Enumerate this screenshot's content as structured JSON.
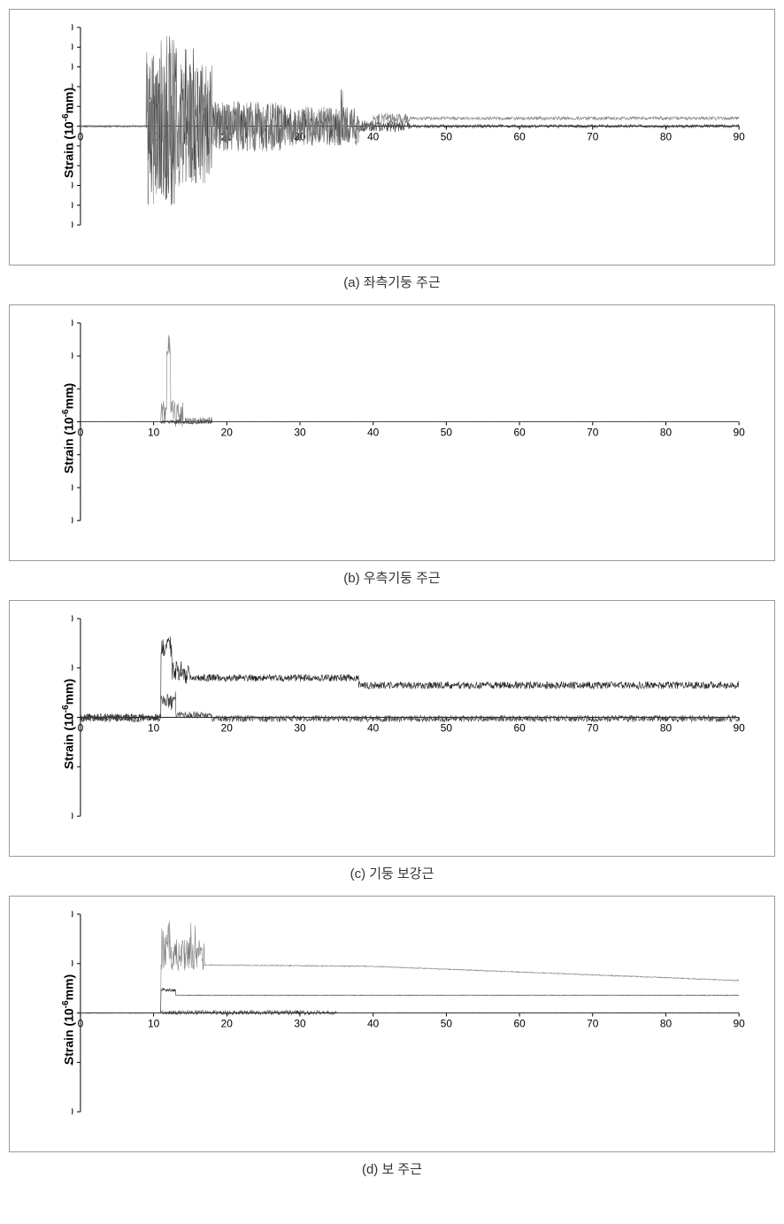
{
  "page": {
    "background_color": "#ffffff",
    "border_color": "#999999",
    "font_family": "Arial, sans-serif"
  },
  "charts": [
    {
      "id": "chart-a",
      "caption": "(a) 좌측기둥 주근",
      "ylabel": "Strain (10⁻⁶mm)",
      "type": "line",
      "xlim": [
        0,
        90
      ],
      "ylim": [
        -3500,
        3500
      ],
      "xtick_step": 10,
      "ytick_step": 700,
      "xticks": [
        0,
        10,
        20,
        30,
        40,
        50,
        60,
        70,
        80,
        90
      ],
      "yticks": [
        -3500,
        -2800,
        -2100,
        -1400,
        -700,
        0,
        700,
        1400,
        2100,
        2800,
        3500
      ],
      "zero_line_y": 0,
      "line_width": 0.6,
      "colors": {
        "series1": "#404040",
        "series2": "#808080"
      },
      "series": [
        {
          "name": "series1",
          "color": "#404040",
          "data_summary": "oscillating strain, quiet 0-9, high activity peaks ~3100 at 11-13, spikes to 2900 at 14-16, diminishing oscillations 18-40, near zero after 45"
        },
        {
          "name": "series2",
          "color": "#808080",
          "data_summary": "similar envelope, slightly offset, settles near 300 after 40"
        }
      ]
    },
    {
      "id": "chart-b",
      "caption": "(b) 우측기둥 주근",
      "ylabel": "Strain (10⁻⁶mm)",
      "type": "line",
      "xlim": [
        0,
        90
      ],
      "ylim": [
        -90000,
        90000
      ],
      "xtick_step": 10,
      "ytick_step": 30000,
      "xticks": [
        0,
        10,
        20,
        30,
        40,
        50,
        60,
        70,
        80,
        90
      ],
      "yticks": [
        -90000,
        -60000,
        -30000,
        0,
        30000,
        60000,
        90000
      ],
      "zero_line_y": 0,
      "line_width": 0.6,
      "colors": {
        "series1": "#404040",
        "series2": "#808080"
      },
      "series": [
        {
          "name": "series1",
          "color": "#808080",
          "data_summary": "flat near zero, single large spike ~80000 at x≈12, minor spikes ~20000 nearby, flat after 18"
        },
        {
          "name": "series2",
          "color": "#404040",
          "data_summary": "minor activity 11-18, mostly flat"
        }
      ]
    },
    {
      "id": "chart-c",
      "caption": "(c) 기둥 보강근",
      "ylabel": "Strain (10⁻⁶mm)",
      "type": "line",
      "xlim": [
        0,
        90
      ],
      "ylim": [
        -400,
        400
      ],
      "xtick_step": 10,
      "ytick_step": 200,
      "xticks": [
        0,
        10,
        20,
        30,
        40,
        50,
        60,
        70,
        80,
        90
      ],
      "yticks": [
        -400,
        -200,
        0,
        200,
        400
      ],
      "zero_line_y": 0,
      "line_width": 0.8,
      "colors": {
        "series1": "#202020",
        "series2": "#404040"
      },
      "series": [
        {
          "name": "upper",
          "color": "#202020",
          "data_summary": "noisy band, jumps to ~320 at x≈12, settles oscillating around 150-170 through 40, then steady ~130"
        },
        {
          "name": "lower",
          "color": "#404040",
          "data_summary": "noisy band oscillating around -10 to 10 throughout, small peak ~100 at x≈12"
        }
      ]
    },
    {
      "id": "chart-d",
      "caption": "(d) 보 주근",
      "ylabel": "Strain (10⁻⁶mm)",
      "type": "line",
      "xlim": [
        0,
        90
      ],
      "ylim": [
        -14000,
        14000
      ],
      "xtick_step": 10,
      "ytick_step": 7000,
      "xticks": [
        0,
        10,
        20,
        30,
        40,
        50,
        60,
        70,
        80,
        90
      ],
      "yticks": [
        -14000,
        -7000,
        0,
        7000,
        14000
      ],
      "zero_line_y": 0,
      "line_width": 0.7,
      "colors": {
        "series1": "#808080",
        "series2": "#303030",
        "series3": "#404040"
      },
      "series": [
        {
          "name": "top",
          "color": "#808080",
          "data_summary": "spikes to ~13000 at x≈12-16, settles ~6800 through 40, slow decline to ~4800 at 85"
        },
        {
          "name": "mid",
          "color": "#303030",
          "data_summary": "jumps to ~3500 at x≈12, steady ~2500 thereafter"
        },
        {
          "name": "bottom",
          "color": "#404040",
          "data_summary": "minor activity near zero, small oscillations 12-35"
        }
      ]
    }
  ]
}
